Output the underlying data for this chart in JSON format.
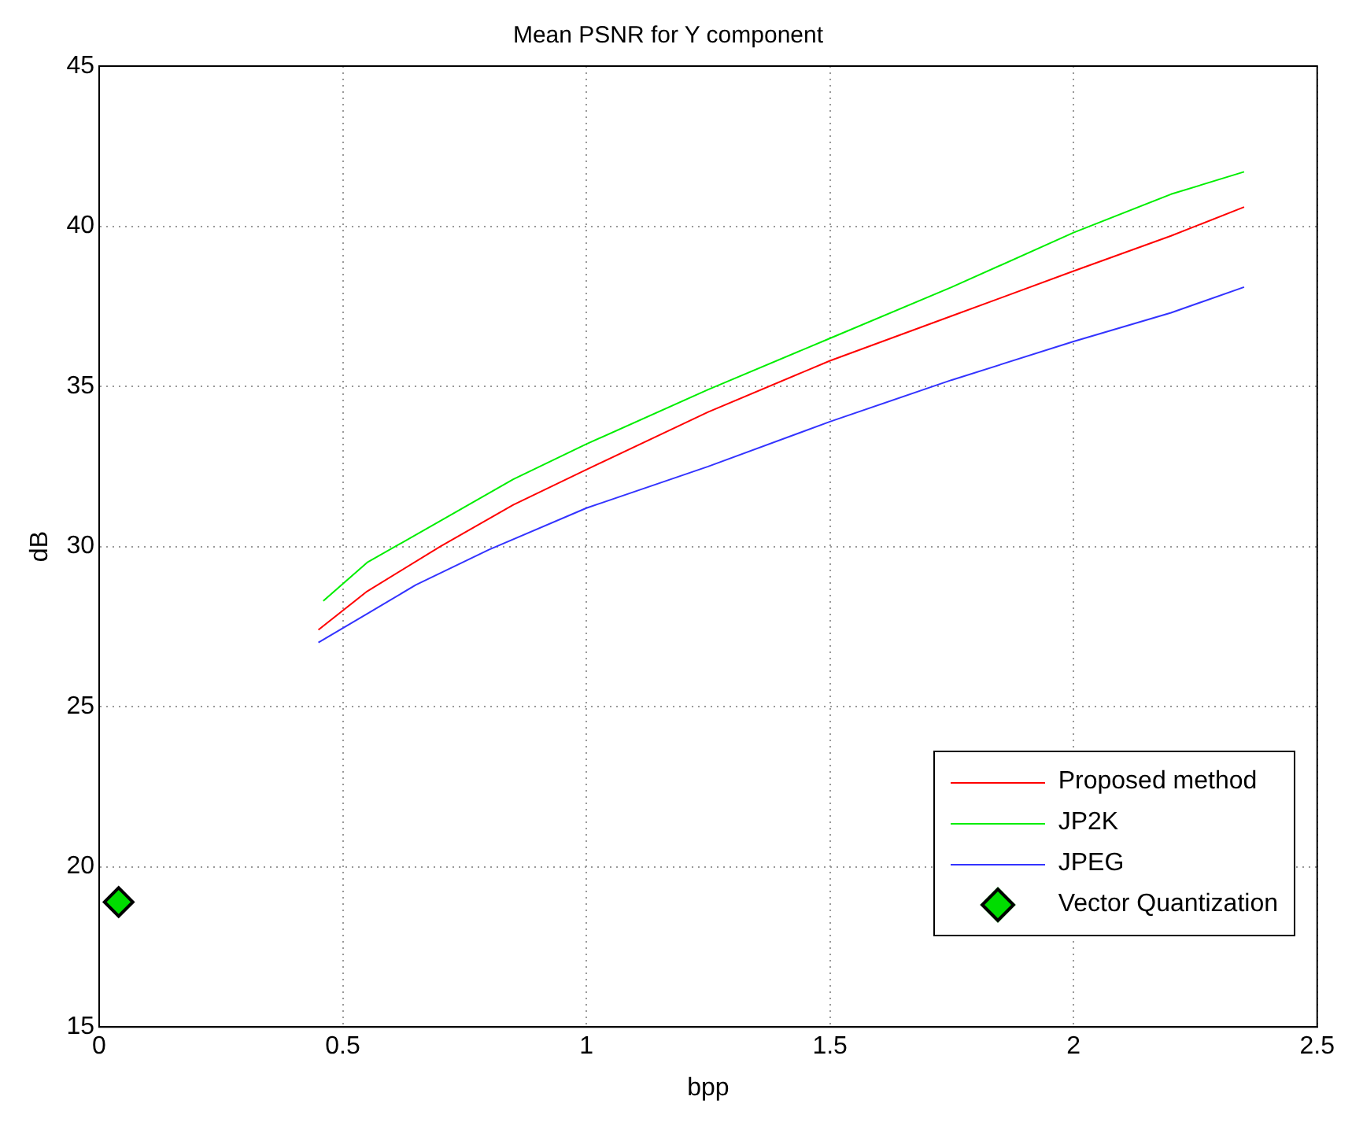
{
  "chart_data": {
    "type": "line",
    "title": "Mean PSNR for Y component",
    "xlabel": "bpp",
    "ylabel": "dB",
    "xlim": [
      0,
      2.5
    ],
    "xticks": [
      0,
      0.5,
      1,
      1.5,
      2,
      2.5
    ],
    "ylim": [
      15,
      45
    ],
    "yticks": [
      15,
      20,
      25,
      30,
      35,
      40,
      45
    ],
    "grid": true,
    "legend": "bottom right",
    "line_style": "solid",
    "series": [
      {
        "name": "Proposed method",
        "color": "#ff0000",
        "marker": "none",
        "x": [
          0.45,
          0.55,
          0.7,
          0.85,
          1,
          1.25,
          1.5,
          1.75,
          2,
          2.2,
          2.35
        ],
        "values": [
          27.4,
          28.6,
          30.0,
          31.3,
          32.4,
          34.2,
          35.8,
          37.2,
          38.6,
          39.7,
          40.6
        ]
      },
      {
        "name": "JP2K",
        "color": "#00ee00",
        "marker": "none",
        "x": [
          0.46,
          0.55,
          0.7,
          0.85,
          1,
          1.25,
          1.5,
          1.75,
          2,
          2.2,
          2.35
        ],
        "values": [
          28.3,
          29.5,
          30.8,
          32.1,
          33.2,
          34.9,
          36.5,
          38.1,
          39.8,
          41.0,
          41.7
        ]
      },
      {
        "name": "JPEG",
        "color": "#3333ff",
        "marker": "none",
        "x": [
          0.45,
          0.55,
          0.65,
          0.8,
          1,
          1.25,
          1.5,
          1.75,
          2,
          2.2,
          2.35
        ],
        "values": [
          27.0,
          27.9,
          28.8,
          29.9,
          31.2,
          32.5,
          33.9,
          35.2,
          36.4,
          37.3,
          38.1
        ]
      },
      {
        "name": "Vector Quantization",
        "type": "scatter",
        "color": "#00dd00",
        "marker": "diamond",
        "x": [
          0.04
        ],
        "values": [
          18.9
        ]
      }
    ]
  }
}
